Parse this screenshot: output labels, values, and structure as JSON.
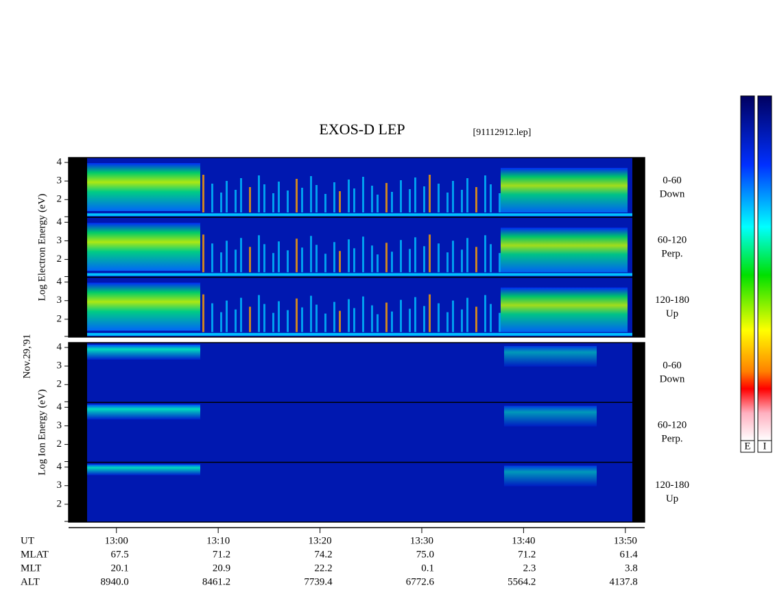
{
  "chart_data": {
    "type": "spectrogram",
    "title": "EXOS-D LEP",
    "file": "[91112912.lep]",
    "date": "Nov.29,'91",
    "species": [
      {
        "name": "Electron",
        "axis_label": "Log Electron Energy (eV)",
        "panels": [
          {
            "range": "0-60",
            "dir": "Down"
          },
          {
            "range": "60-120",
            "dir": "Perp."
          },
          {
            "range": "120-180",
            "dir": "Up"
          }
        ]
      },
      {
        "name": "Ion",
        "axis_label": "Log Ion Energy (eV)",
        "panels": [
          {
            "range": "0-60",
            "dir": "Down"
          },
          {
            "range": "60-120",
            "dir": "Perp."
          },
          {
            "range": "120-180",
            "dir": "Up"
          }
        ]
      }
    ],
    "ylim": [
      1.04,
      4.26
    ],
    "yticks": [
      2,
      3,
      4
    ],
    "xlim": [
      775.3,
      831.9
    ],
    "xticks": [
      {
        "value": 780,
        "label": "13:00"
      },
      {
        "value": 790,
        "label": "13:10"
      },
      {
        "value": 800,
        "label": "13:20"
      },
      {
        "value": 810,
        "label": "13:30"
      },
      {
        "value": 820,
        "label": "13:40"
      },
      {
        "value": 830,
        "label": "13:50"
      }
    ],
    "x_label": "UT",
    "ephemeris": [
      {
        "name": "MLAT",
        "values": [
          "67.5",
          "71.2",
          "74.2",
          "75.0",
          "71.2",
          "61.4"
        ]
      },
      {
        "name": "MLT",
        "values": [
          "20.1",
          "20.9",
          "22.2",
          "0.1",
          "2.3",
          "3.8"
        ]
      },
      {
        "name": "ALT",
        "values": [
          "8940.0",
          "8461.2",
          "7739.4",
          "6772.6",
          "5564.2",
          "4137.8"
        ]
      }
    ],
    "colorbars": [
      "E",
      "I"
    ]
  }
}
